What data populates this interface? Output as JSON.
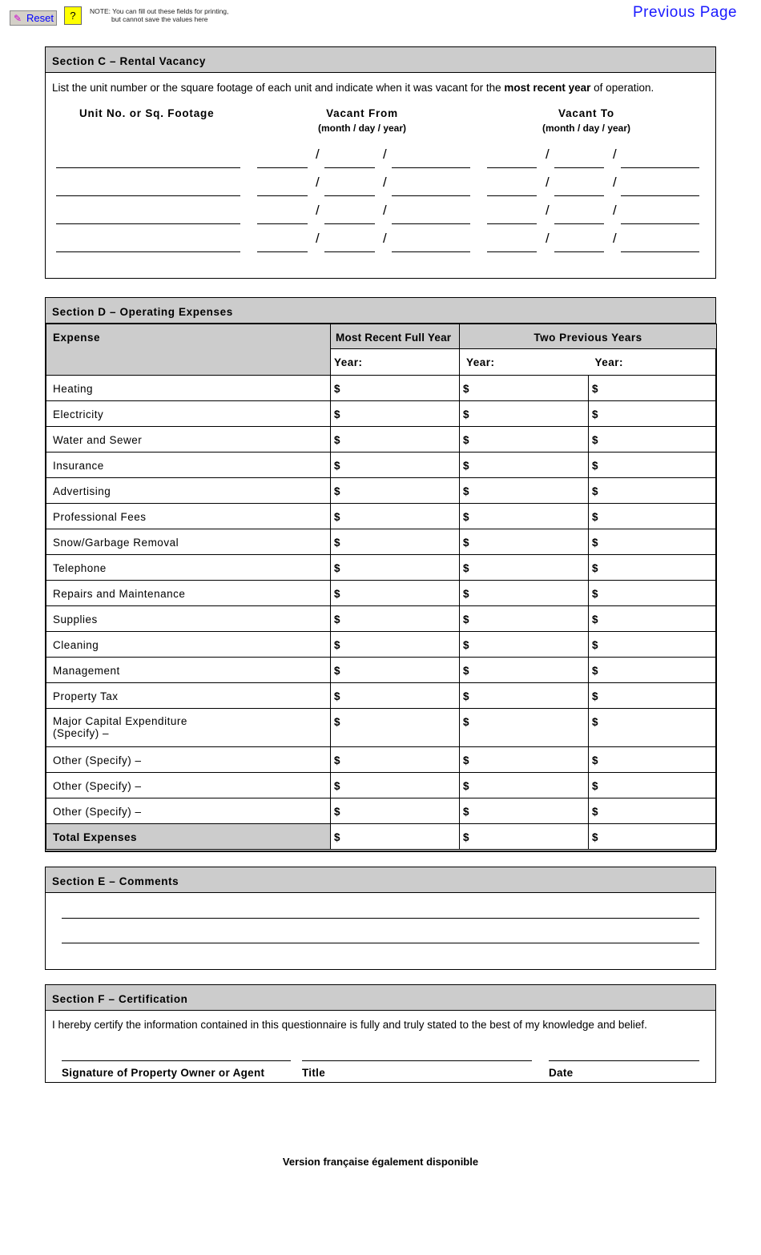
{
  "toolbar": {
    "reset_label": "Reset",
    "help_label": "?",
    "note_line1": "NOTE: You can fill out these fields for printing,",
    "note_line2": "but cannot save the values here",
    "previous_page": "Previous Page"
  },
  "section_c": {
    "title": "Section C – Rental Vacancy",
    "instr_pre": "List the unit number or the square footage of each unit and indicate when it was vacant for the ",
    "instr_bold": "most recent year",
    "instr_post": " of operation.",
    "col_unit": "Unit No. or Sq. Footage",
    "col_from": "Vacant From",
    "col_to": "Vacant To",
    "date_format": "(month / day / year)",
    "separator": "/"
  },
  "section_d": {
    "title": "Section D – Operating Expenses",
    "col_expense": "Expense",
    "col_recent": "Most Recent Full Year",
    "col_previous": "Two Previous Years",
    "year_label": "Year:",
    "currency": "$",
    "rows": [
      "Heating",
      "Electricity",
      "Water and Sewer",
      "Insurance",
      "Advertising",
      "Professional Fees",
      "Snow/Garbage Removal",
      "Telephone",
      "Repairs and Maintenance",
      "Supplies",
      "Cleaning",
      "Management",
      "Property Tax",
      "Major Capital Expenditure\n(Specify) –",
      "Other (Specify) –",
      "Other (Specify) –",
      "Other (Specify) –"
    ],
    "total": "Total Expenses"
  },
  "section_e": {
    "title": "Section E – Comments"
  },
  "section_f": {
    "title": "Section F – Certification",
    "statement": "I hereby certify the information contained in this questionnaire is fully and truly stated to the best of my knowledge and belief.",
    "sig_label": "Signature of Property Owner or Agent",
    "title_label": "Title",
    "date_label": "Date"
  },
  "footer": {
    "french": "Version française également disponible"
  }
}
